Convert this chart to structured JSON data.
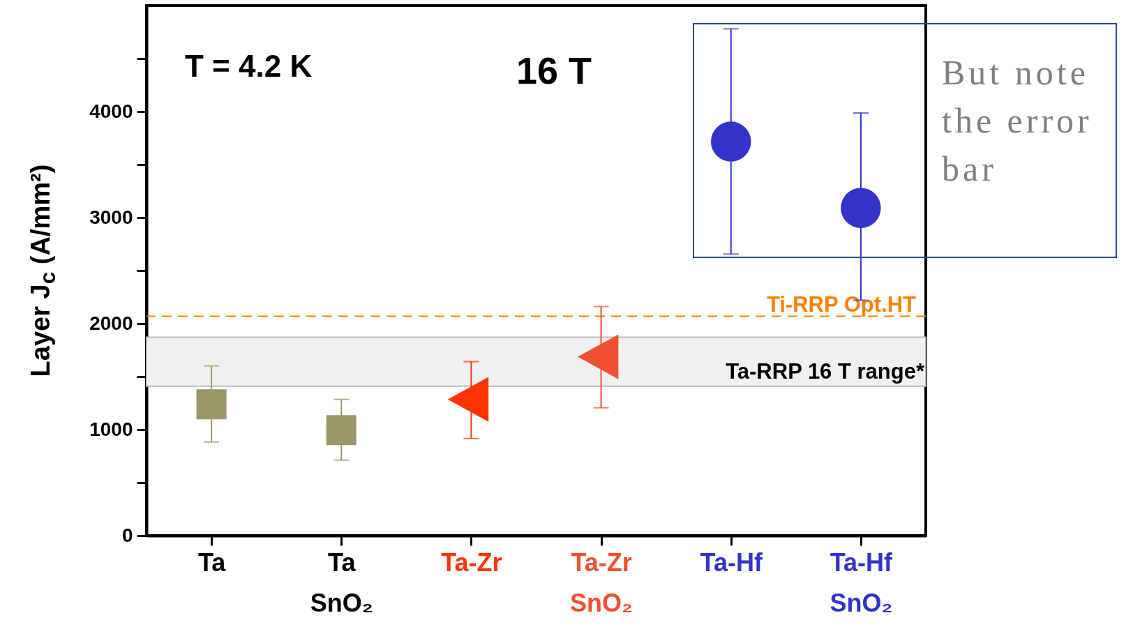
{
  "chart_data": {
    "type": "scatter",
    "ylabel": "Layer J$_{c}$ (A/mm²)",
    "categories": [
      "Ta",
      "Ta\nSnO₂",
      "Ta-Zr",
      "Ta-Zr\nSnO₂",
      "Ta-Hf",
      "Ta-Hf\nSnO₂"
    ],
    "series": [
      {
        "color": "#9a9868",
        "marker": "square",
        "values": [
          1239,
          null,
          null,
          null,
          null,
          null
        ],
        "errors": [
          [
            883,
            1601
          ],
          null,
          null,
          null,
          null,
          null
        ]
      },
      {
        "color": "#9a9868",
        "marker": "square",
        "values": [
          null,
          995,
          null,
          null,
          null,
          null
        ],
        "errors": [
          null,
          [
            712,
            1285
          ],
          null,
          null,
          null,
          null
        ]
      },
      {
        "color": "#ff3300",
        "marker": "triangle",
        "values": [
          null,
          null,
          1285,
          null,
          null,
          null
        ],
        "errors": [
          null,
          null,
          [
            916,
            1641
          ],
          null,
          null,
          null
        ]
      },
      {
        "color": "#f05030",
        "marker": "triangle",
        "values": [
          null,
          null,
          null,
          1687,
          null,
          null
        ],
        "errors": [
          null,
          null,
          null,
          [
            1206,
            2161
          ],
          null,
          null
        ]
      },
      {
        "color": "#3333cc",
        "marker": "circle",
        "values": [
          null,
          null,
          null,
          null,
          3717,
          null
        ],
        "errors": [
          null,
          null,
          null,
          null,
          [
            2656,
            4781
          ],
          null
        ]
      },
      {
        "color": "#3333cc",
        "marker": "circle",
        "values": [
          null,
          null,
          null,
          null,
          null,
          3091
        ],
        "errors": [
          null,
          null,
          null,
          null,
          null,
          [
            2221,
            3987
          ]
        ]
      }
    ],
    "ylim": [
      0,
      5000
    ],
    "yticks": [
      0,
      {
        "value": 500,
        "label": null
      },
      1000,
      {
        "value": 1500,
        "label": null
      },
      2000,
      {
        "value": 2500,
        "label": null
      },
      3000,
      {
        "value": 3500,
        "label": null
      },
      4000,
      {
        "value": 4500,
        "label": null
      }
    ],
    "ref_lines": [
      {
        "axis": "y",
        "value": 2069,
        "label": "Ti-RRP Opt.HT",
        "color": "#ff8000",
        "line_style": "dashed"
      }
    ],
    "bands": [
      {
        "axis": "y",
        "from": 1410,
        "to": 1871,
        "label": "Ta-RRP 16 T range*",
        "color": "#f0f0f0"
      }
    ],
    "annotations": [
      "T = 4.2 K",
      "16 T",
      "But note the error bar"
    ]
  }
}
